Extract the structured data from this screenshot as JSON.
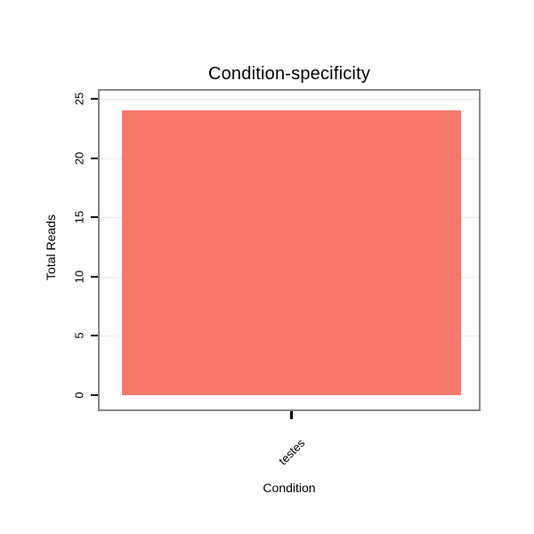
{
  "chart_data": {
    "type": "bar",
    "title": "Condition-specificity",
    "xlabel": "Condition",
    "ylabel": "Total Reads",
    "categories": [
      "testes"
    ],
    "values": [
      24
    ],
    "ylim": [
      0,
      25
    ],
    "yticks": [
      0,
      5,
      10,
      15,
      20,
      25
    ],
    "grid": true,
    "legend": "none",
    "bar_color": "#f8796b",
    "box_border_color": "#888888",
    "grid_color": "#ececec",
    "tick_color": "#000000",
    "background": "#ffffff"
  }
}
